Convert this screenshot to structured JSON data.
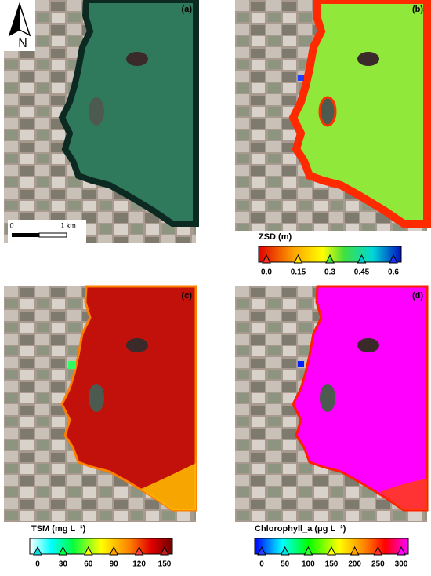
{
  "panels": [
    {
      "label": "(a)"
    },
    {
      "label": "(b)"
    },
    {
      "label": "(c)"
    },
    {
      "label": "(d)"
    }
  ],
  "north_arrow": "N",
  "scale_bar": {
    "start": "0",
    "end": "1 km"
  },
  "colorbars": [
    {
      "title": "ZSD (m)",
      "ticks": [
        {
          "value": 0,
          "label": "0.0"
        },
        0.15,
        0.3,
        0.45,
        0.6
      ]
    },
    {
      "title": "TSM (mg L⁻¹)",
      "ticks": [
        0,
        30,
        60,
        90,
        120,
        150
      ]
    },
    {
      "title": "Chlorophyll_a (μg L⁻¹)",
      "ticks": [
        0,
        50,
        100,
        150,
        200,
        250,
        300
      ]
    }
  ]
}
